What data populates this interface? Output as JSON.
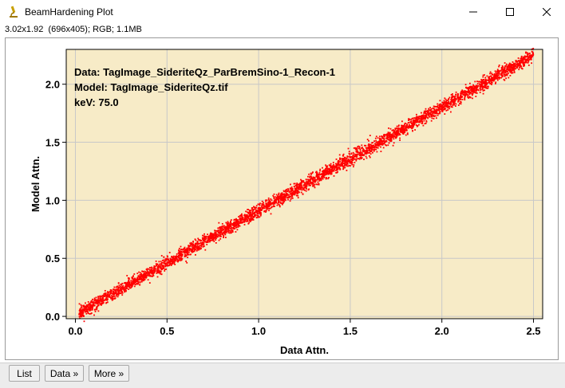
{
  "window": {
    "title": "BeamHardening Plot",
    "icon": "microscope-icon",
    "controls": [
      "minimize-icon",
      "maximize-icon",
      "close-icon"
    ]
  },
  "image_info": "3.02x1.92  (696x405); RGB; 1.1MB",
  "plot": {
    "annotation_lines": [
      "Data: TagImage_SideriteQz_ParBremSino-1_Recon-1",
      "Model: TagImage_SideriteQz.tif",
      "keV: 75.0"
    ],
    "colors": {
      "background": "#f7ebc7",
      "points": "#ff0000",
      "grid": "#c8c8c8"
    }
  },
  "chart_data": {
    "type": "scatter",
    "xlabel": "Data Attn.",
    "ylabel": "Model Attn.",
    "xlim": [
      -0.05,
      2.55
    ],
    "ylim": [
      -0.02,
      2.3
    ],
    "xticks": [
      "0.0",
      "0.5",
      "1.0",
      "1.5",
      "2.0",
      "2.5"
    ],
    "yticks": [
      "0.0",
      "0.5",
      "1.0",
      "1.5",
      "2.0"
    ],
    "grid": true,
    "series": [
      {
        "values_description": "approx. y = 0.9*x, dense point cloud",
        "x": [
          0.02,
          0.05,
          0.08,
          0.1,
          0.15,
          0.2,
          0.25,
          0.3,
          0.35,
          0.4,
          0.45,
          0.5,
          0.55,
          0.6,
          0.65,
          0.7,
          0.75,
          0.8,
          0.85,
          0.9,
          0.95,
          1.0,
          1.05,
          1.1,
          1.15,
          1.2,
          1.25,
          1.3,
          1.35,
          1.4,
          1.45,
          1.5,
          1.55,
          1.6,
          1.65,
          1.7,
          1.75,
          1.8,
          1.85,
          1.9,
          1.95,
          2.0,
          2.05,
          2.1,
          2.15,
          2.2,
          2.25,
          2.3,
          2.35,
          2.4,
          2.45,
          2.5
        ],
        "y": [
          0.03,
          0.05,
          0.08,
          0.1,
          0.14,
          0.18,
          0.23,
          0.27,
          0.31,
          0.36,
          0.4,
          0.45,
          0.49,
          0.54,
          0.58,
          0.63,
          0.67,
          0.72,
          0.76,
          0.81,
          0.85,
          0.9,
          0.94,
          0.99,
          1.03,
          1.08,
          1.12,
          1.17,
          1.21,
          1.26,
          1.3,
          1.35,
          1.39,
          1.44,
          1.48,
          1.53,
          1.57,
          1.62,
          1.66,
          1.71,
          1.75,
          1.8,
          1.84,
          1.89,
          1.93,
          1.98,
          2.02,
          2.07,
          2.11,
          2.16,
          2.2,
          2.25
        ]
      }
    ]
  },
  "bottom_buttons": [
    "List",
    "Data »",
    "More »"
  ]
}
